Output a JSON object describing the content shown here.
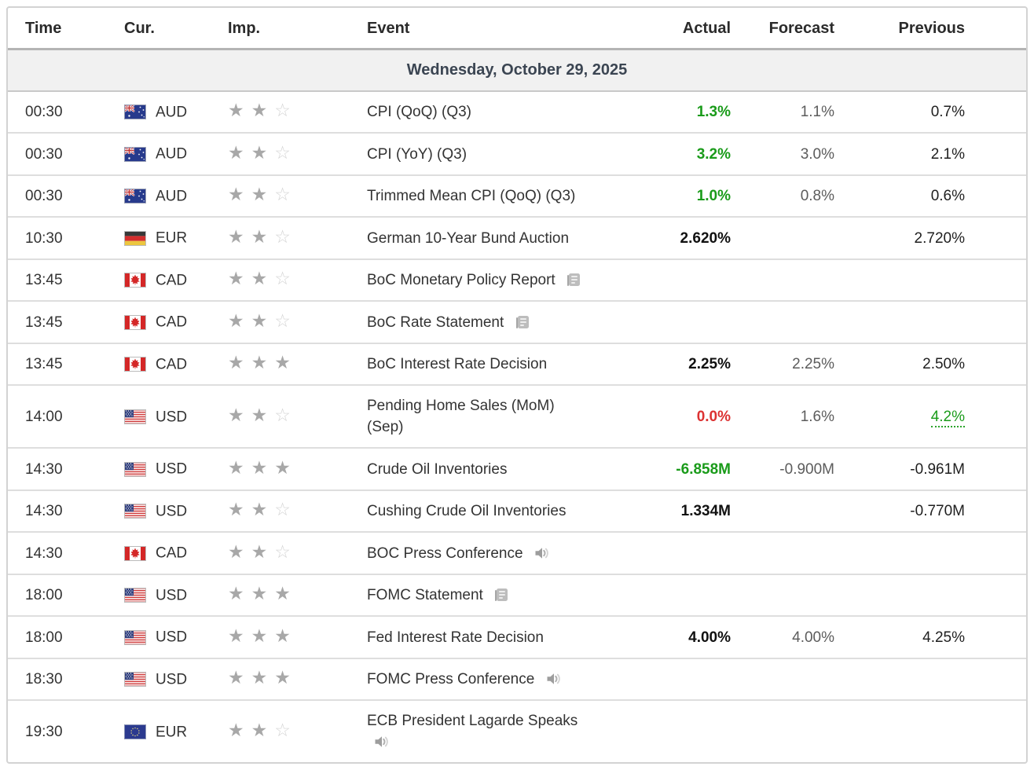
{
  "columns": {
    "time": "Time",
    "cur": "Cur.",
    "imp": "Imp.",
    "event": "Event",
    "actual": "Actual",
    "forecast": "Forecast",
    "previous": "Previous"
  },
  "date_header": "Wednesday, October 29, 2025",
  "rows": [
    {
      "time": "00:30",
      "flag": "australia",
      "currency": "AUD",
      "importance": 2,
      "event": "CPI (QoQ) (Q3)",
      "attachment": null,
      "actual": "1.3%",
      "actual_state": "better",
      "forecast": "1.1%",
      "previous": "0.7%",
      "previous_revised": false
    },
    {
      "time": "00:30",
      "flag": "australia",
      "currency": "AUD",
      "importance": 2,
      "event": "CPI (YoY) (Q3)",
      "attachment": null,
      "actual": "3.2%",
      "actual_state": "better",
      "forecast": "3.0%",
      "previous": "2.1%",
      "previous_revised": false
    },
    {
      "time": "00:30",
      "flag": "australia",
      "currency": "AUD",
      "importance": 2,
      "event": "Trimmed Mean CPI (QoQ) (Q3)",
      "attachment": null,
      "actual": "1.0%",
      "actual_state": "better",
      "forecast": "0.8%",
      "previous": "0.6%",
      "previous_revised": false
    },
    {
      "time": "10:30",
      "flag": "germany",
      "currency": "EUR",
      "importance": 2,
      "event": "German 10-Year Bund Auction",
      "attachment": null,
      "actual": "2.620%",
      "actual_state": "neutral",
      "forecast": "",
      "previous": "2.720%",
      "previous_revised": false
    },
    {
      "time": "13:45",
      "flag": "canada",
      "currency": "CAD",
      "importance": 2,
      "event": "BoC Monetary Policy Report",
      "attachment": "report",
      "actual": "",
      "actual_state": "",
      "forecast": "",
      "previous": "",
      "previous_revised": false
    },
    {
      "time": "13:45",
      "flag": "canada",
      "currency": "CAD",
      "importance": 2,
      "event": "BoC Rate Statement",
      "attachment": "report",
      "actual": "",
      "actual_state": "",
      "forecast": "",
      "previous": "",
      "previous_revised": false
    },
    {
      "time": "13:45",
      "flag": "canada",
      "currency": "CAD",
      "importance": 3,
      "event": "BoC Interest Rate Decision",
      "attachment": null,
      "actual": "2.25%",
      "actual_state": "neutral",
      "forecast": "2.25%",
      "previous": "2.50%",
      "previous_revised": false
    },
    {
      "time": "14:00",
      "flag": "usa",
      "currency": "USD",
      "importance": 2,
      "event": "Pending Home Sales (MoM)\n(Sep)",
      "attachment": null,
      "actual": "0.0%",
      "actual_state": "worse",
      "forecast": "1.6%",
      "previous": "4.2%",
      "previous_revised": true
    },
    {
      "time": "14:30",
      "flag": "usa",
      "currency": "USD",
      "importance": 3,
      "event": "Crude Oil Inventories",
      "attachment": null,
      "actual": "-6.858M",
      "actual_state": "better",
      "forecast": "-0.900M",
      "previous": "-0.961M",
      "previous_revised": false
    },
    {
      "time": "14:30",
      "flag": "usa",
      "currency": "USD",
      "importance": 2,
      "event": "Cushing Crude Oil Inventories",
      "attachment": null,
      "actual": "1.334M",
      "actual_state": "neutral",
      "forecast": "",
      "previous": "-0.770M",
      "previous_revised": false
    },
    {
      "time": "14:30",
      "flag": "canada",
      "currency": "CAD",
      "importance": 2,
      "event": "BOC Press Conference",
      "attachment": "speech",
      "actual": "",
      "actual_state": "",
      "forecast": "",
      "previous": "",
      "previous_revised": false
    },
    {
      "time": "18:00",
      "flag": "usa",
      "currency": "USD",
      "importance": 3,
      "event": "FOMC Statement",
      "attachment": "report",
      "actual": "",
      "actual_state": "",
      "forecast": "",
      "previous": "",
      "previous_revised": false
    },
    {
      "time": "18:00",
      "flag": "usa",
      "currency": "USD",
      "importance": 3,
      "event": "Fed Interest Rate Decision",
      "attachment": null,
      "actual": "4.00%",
      "actual_state": "neutral",
      "forecast": "4.00%",
      "previous": "4.25%",
      "previous_revised": false
    },
    {
      "time": "18:30",
      "flag": "usa",
      "currency": "USD",
      "importance": 3,
      "event": "FOMC Press Conference",
      "attachment": "speech",
      "actual": "",
      "actual_state": "",
      "forecast": "",
      "previous": "",
      "previous_revised": false
    },
    {
      "time": "19:30",
      "flag": "eu",
      "currency": "EUR",
      "importance": 2,
      "event": "ECB President Lagarde Speaks",
      "attachment": "speech",
      "attachment_new_line": true,
      "actual": "",
      "actual_state": "",
      "forecast": "",
      "previous": "",
      "previous_revised": false
    }
  ],
  "colors": {
    "actual_better": "#1a9b1a",
    "actual_worse": "#dc3232",
    "actual_neutral": "#111111",
    "date_text": "#3b4552",
    "header_text": "#2b2b2b",
    "date_row_background": "#f1f1f1",
    "star_filled": "#a8a8a8",
    "star_empty": "#d4d4d4"
  },
  "icons": {
    "report": "report-icon",
    "speech": "speaker-icon",
    "star_filled": "star-filled-icon",
    "star_empty": "star-empty-icon"
  }
}
